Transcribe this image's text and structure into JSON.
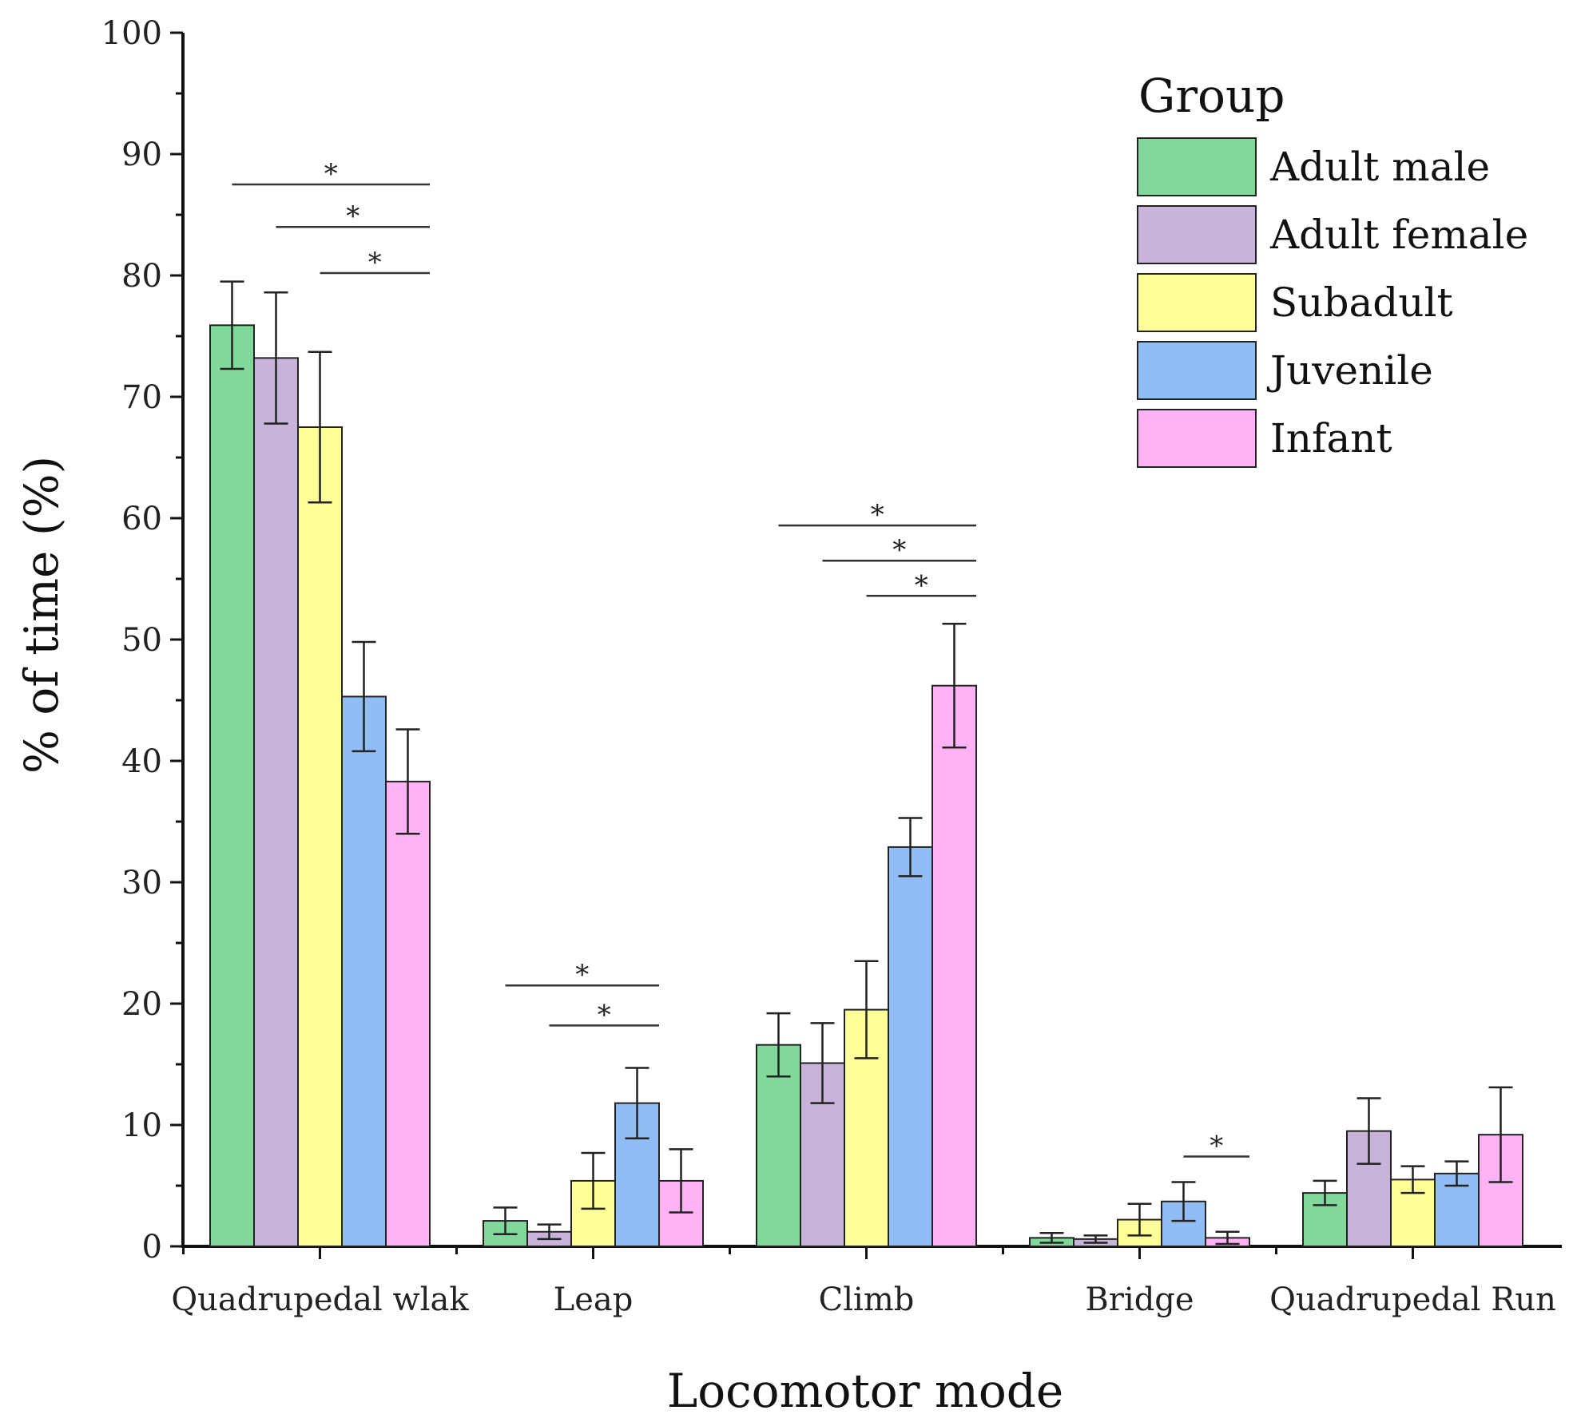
{
  "chart_data": {
    "type": "bar",
    "title": "",
    "xlabel": "Locomotor mode",
    "ylabel": "% of time (%)",
    "ylim": [
      0,
      100
    ],
    "yticks": [
      0,
      10,
      20,
      30,
      40,
      50,
      60,
      70,
      80,
      90,
      100
    ],
    "grid": false,
    "legend": {
      "title": "Group",
      "position": "top-right"
    },
    "categories": [
      "Quadrupedal wlak",
      "Leap",
      "Climb",
      "Bridge",
      "Quadrupedal Run"
    ],
    "series": [
      {
        "name": "Adult male",
        "color": "#80D99A",
        "values": [
          75.9,
          2.1,
          16.6,
          0.7,
          4.4
        ],
        "errors": [
          3.6,
          1.1,
          2.6,
          0.4,
          1.0
        ]
      },
      {
        "name": "Adult female",
        "color": "#C8B4D8",
        "values": [
          73.2,
          1.2,
          15.1,
          0.6,
          9.5
        ],
        "errors": [
          5.4,
          0.6,
          3.3,
          0.3,
          2.7
        ]
      },
      {
        "name": "Subadult",
        "color": "#FFFF99",
        "values": [
          67.5,
          5.4,
          19.5,
          2.2,
          5.5
        ],
        "errors": [
          6.2,
          2.3,
          4.0,
          1.3,
          1.1
        ]
      },
      {
        "name": "Juvenile",
        "color": "#8FBDF4",
        "values": [
          45.3,
          11.8,
          32.9,
          3.7,
          6.0
        ],
        "errors": [
          4.5,
          2.9,
          2.4,
          1.6,
          1.0
        ]
      },
      {
        "name": "Infant",
        "color": "#FFB3F5",
        "values": [
          38.3,
          5.4,
          46.2,
          0.7,
          9.2
        ],
        "errors": [
          4.3,
          2.6,
          5.1,
          0.5,
          3.9
        ]
      }
    ],
    "significance": [
      {
        "category": 0,
        "from": "Adult male",
        "to": "Infant",
        "y": 87.5,
        "label": "*"
      },
      {
        "category": 0,
        "from": "Adult female",
        "to": "Infant",
        "y": 84.0,
        "label": "*"
      },
      {
        "category": 0,
        "from": "Subadult",
        "to": "Infant",
        "y": 80.2,
        "label": "*"
      },
      {
        "category": 1,
        "from": "Adult male",
        "to": "Juvenile",
        "y": 21.5,
        "label": "*"
      },
      {
        "category": 1,
        "from": "Adult female",
        "to": "Juvenile",
        "y": 18.2,
        "label": "*"
      },
      {
        "category": 2,
        "from": "Adult male",
        "to": "Infant",
        "y": 59.4,
        "label": "*"
      },
      {
        "category": 2,
        "from": "Adult female",
        "to": "Infant",
        "y": 56.5,
        "label": "*"
      },
      {
        "category": 2,
        "from": "Subadult",
        "to": "Infant",
        "y": 53.6,
        "label": "*"
      },
      {
        "category": 3,
        "from": "Juvenile",
        "to": "Infant",
        "y": 7.4,
        "label": "*"
      }
    ]
  }
}
